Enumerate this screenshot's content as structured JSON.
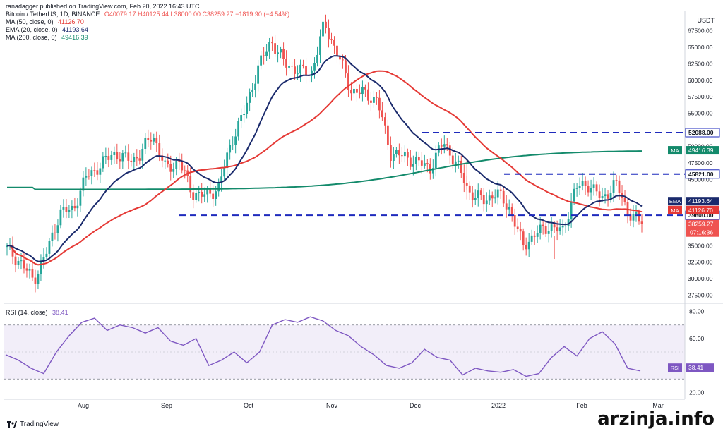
{
  "header": {
    "published": "ranadagger published on TradingView.com, Feb 20, 2022 16:43 UTC",
    "symbol": "Bitcoin / TetherUS, 1D, BINANCE",
    "ohlc": "O40079.17 H40125.44 L38000.00 C38259.27 −1819.90 (−4.54%)",
    "ma50": "MA (50, close, 0)",
    "ma50_val": "41126.70",
    "ema20": "EMA (20, close, 0)",
    "ema20_val": "41193.64",
    "ma200": "MA (200, close, 0)",
    "ma200_val": "49416.39"
  },
  "currency": "USDT",
  "footer": {
    "brand": "TradingView"
  },
  "watermark": "arzinja.info",
  "colors": {
    "up": "#26a69a",
    "down": "#ef5350",
    "ema": "#1a2a6c",
    "ma50": "#e53935",
    "ma200": "#138a6b",
    "level": "#1f2bbd",
    "rsi": "#7e57c2"
  },
  "chart_data": {
    "type": "candlestick",
    "price_axis": {
      "ticks": [
        "67500.00",
        "65000.00",
        "62500.00",
        "60000.00",
        "57500.00",
        "55000.00",
        "50000.00",
        "47500.00",
        "45000.00",
        "35000.00",
        "32500.00",
        "30000.00",
        "27500.00"
      ],
      "range": [
        26500,
        70000
      ]
    },
    "x_labels": [
      "Aug",
      "Sep",
      "Oct",
      "Nov",
      "Dec",
      "2022",
      "Feb",
      "Mar"
    ],
    "horizontal_levels": [
      {
        "label": "52088.00",
        "value": 52088
      },
      {
        "label": "45821.00",
        "value": 45821
      },
      {
        "label": "39600.00",
        "value": 39600
      }
    ],
    "price_labels": [
      {
        "tag": "MA",
        "value": "49416.39",
        "color": "#138a6b"
      },
      {
        "tag": "EMA",
        "value": "41193.64",
        "color": "#1a2a6c"
      },
      {
        "tag": "MA",
        "value": "41126.70",
        "color": "#e53935"
      },
      {
        "value": "38259.27",
        "sub": "07:16:36",
        "color": "#ef5350"
      }
    ],
    "close_path": [
      {
        "d": "Jul 10",
        "c": 34500
      },
      {
        "d": "Jul 15",
        "c": 32500
      },
      {
        "d": "Jul 20",
        "c": 29800
      },
      {
        "d": "Jul 25",
        "c": 34000
      },
      {
        "d": "Jul 30",
        "c": 40000
      },
      {
        "d": "Aug 5",
        "c": 40500
      },
      {
        "d": "Aug 10",
        "c": 45500
      },
      {
        "d": "Aug 15",
        "c": 47000
      },
      {
        "d": "Aug 20",
        "c": 49000
      },
      {
        "d": "Aug 25",
        "c": 48000
      },
      {
        "d": "Aug 30",
        "c": 48500
      },
      {
        "d": "Sep 6",
        "c": 52000
      },
      {
        "d": "Sep 8",
        "c": 46500
      },
      {
        "d": "Sep 15",
        "c": 47800
      },
      {
        "d": "Sep 20",
        "c": 43000
      },
      {
        "d": "Sep 25",
        "c": 42500
      },
      {
        "d": "Sep 30",
        "c": 43800
      },
      {
        "d": "Oct 5",
        "c": 51000
      },
      {
        "d": "Oct 10",
        "c": 55500
      },
      {
        "d": "Oct 15",
        "c": 62000
      },
      {
        "d": "Oct 20",
        "c": 66000
      },
      {
        "d": "Oct 25",
        "c": 62500
      },
      {
        "d": "Oct 30",
        "c": 61500
      },
      {
        "d": "Nov 5",
        "c": 61000
      },
      {
        "d": "Nov 10",
        "c": 68500
      },
      {
        "d": "Nov 15",
        "c": 64000
      },
      {
        "d": "Nov 20",
        "c": 58500
      },
      {
        "d": "Nov 25",
        "c": 58000
      },
      {
        "d": "Nov 30",
        "c": 57000
      },
      {
        "d": "Dec 4",
        "c": 49000
      },
      {
        "d": "Dec 10",
        "c": 48500
      },
      {
        "d": "Dec 15",
        "c": 47600
      },
      {
        "d": "Dec 20",
        "c": 46800
      },
      {
        "d": "Dec 27",
        "c": 50700
      },
      {
        "d": "Jan 1",
        "c": 47300
      },
      {
        "d": "Jan 5",
        "c": 43000
      },
      {
        "d": "Jan 10",
        "c": 41800
      },
      {
        "d": "Jan 15",
        "c": 43000
      },
      {
        "d": "Jan 20",
        "c": 40700
      },
      {
        "d": "Jan 22",
        "c": 35000
      },
      {
        "d": "Jan 26",
        "c": 36800
      },
      {
        "d": "Jan 30",
        "c": 38000
      },
      {
        "d": "Feb 3",
        "c": 37000
      },
      {
        "d": "Feb 7",
        "c": 43800
      },
      {
        "d": "Feb 10",
        "c": 44300
      },
      {
        "d": "Feb 13",
        "c": 42000
      },
      {
        "d": "Feb 16",
        "c": 44500
      },
      {
        "d": "Feb 18",
        "c": 40000
      },
      {
        "d": "Feb 20",
        "c": 38259
      }
    ],
    "rsi": {
      "label": "RSI (14, close)",
      "value": "38.41",
      "ticks": [
        "80.00",
        "60.00",
        "20.00"
      ],
      "range": [
        15,
        85
      ],
      "bands": [
        70,
        30
      ],
      "values": [
        48,
        44,
        38,
        34,
        50,
        62,
        72,
        75,
        66,
        70,
        68,
        64,
        68,
        58,
        55,
        60,
        40,
        44,
        50,
        42,
        50,
        70,
        74,
        72,
        76,
        73,
        66,
        62,
        54,
        48,
        40,
        38,
        42,
        52,
        46,
        44,
        33,
        38,
        36,
        35,
        37,
        32,
        34,
        46,
        54,
        47,
        60,
        65,
        56,
        38,
        36
      ]
    }
  }
}
